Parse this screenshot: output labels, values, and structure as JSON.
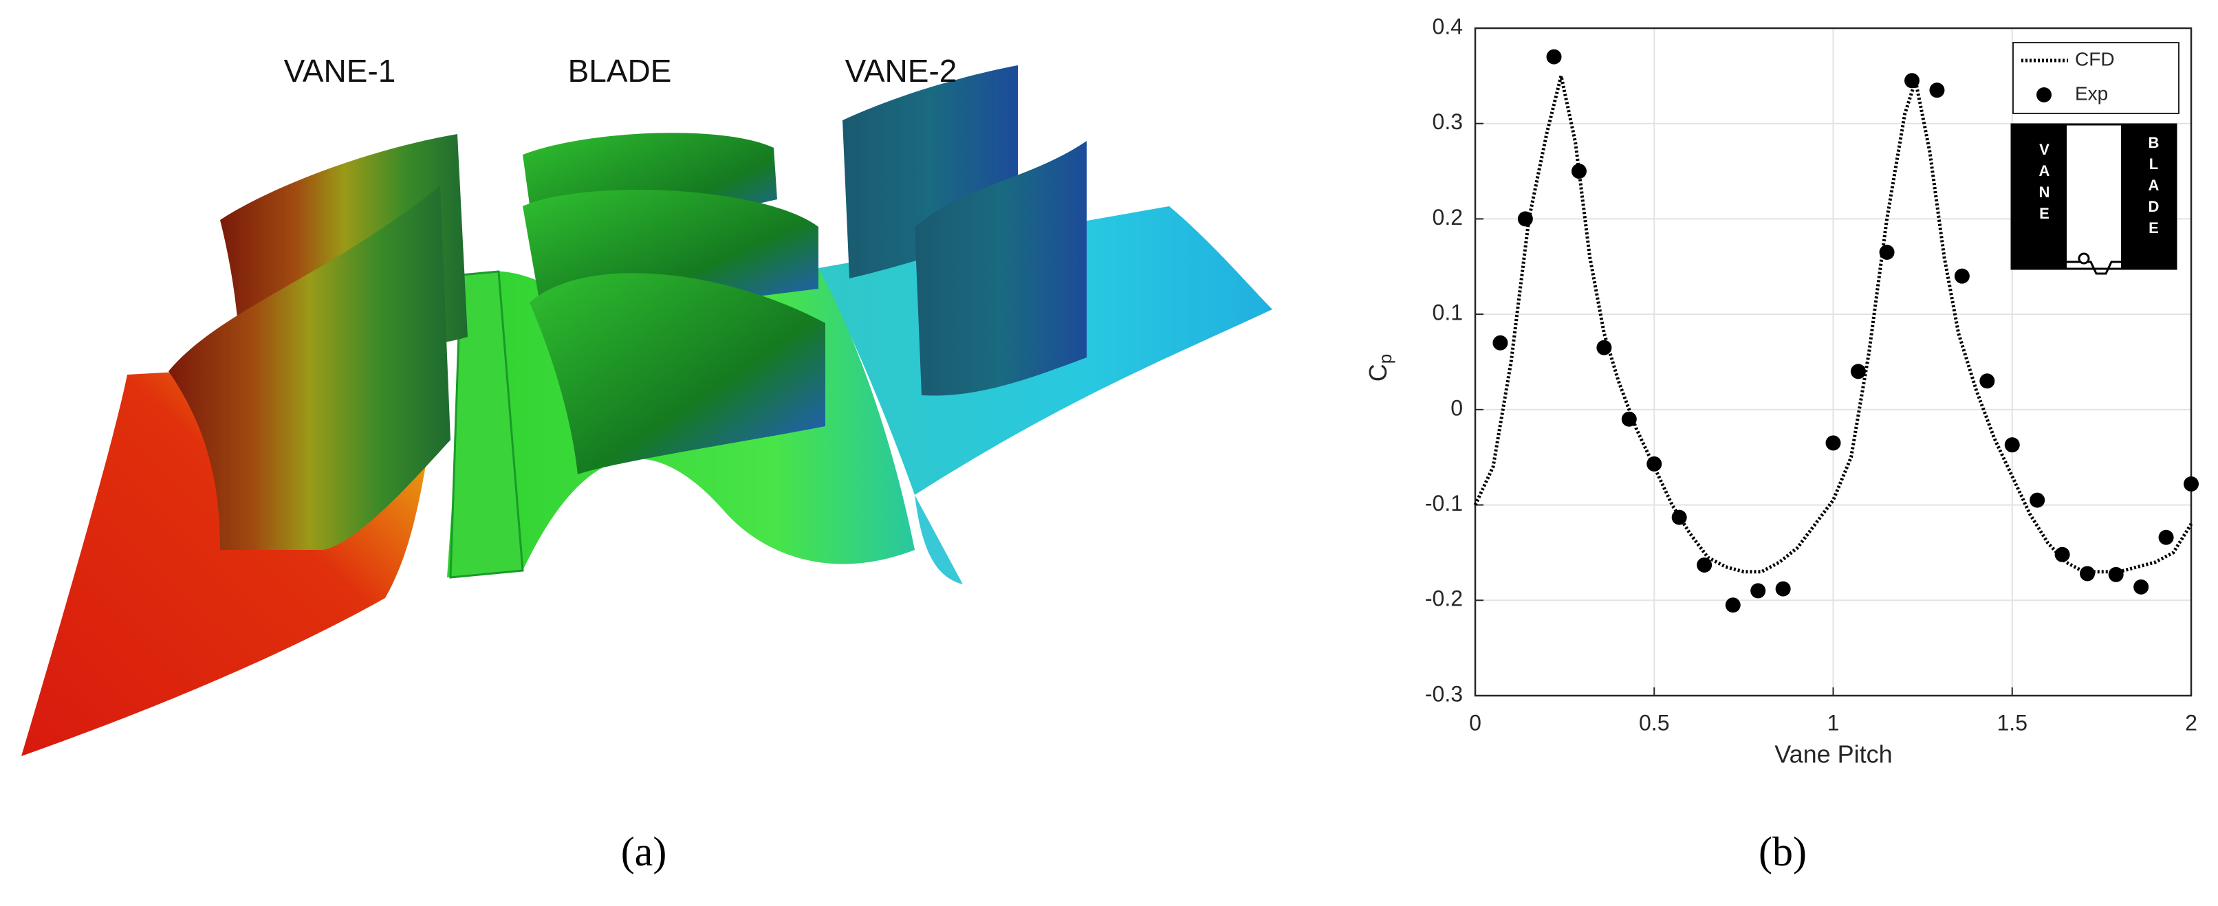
{
  "panel_a": {
    "labels": [
      "VANE-1",
      "BLADE",
      "VANE-2"
    ],
    "caption": "(a)"
  },
  "panel_b": {
    "caption": "(b)",
    "inset": {
      "left": "VANE",
      "right": "BLADE"
    }
  },
  "chart_data": {
    "type": "line",
    "xlabel": "Vane Pitch",
    "ylabel": {
      "base": "C",
      "sub": "p"
    },
    "xlim": [
      0,
      2
    ],
    "xticks": [
      0,
      0.5,
      1,
      1.5,
      2
    ],
    "ylim": [
      -0.3,
      0.4
    ],
    "yticks": [
      -0.3,
      -0.2,
      -0.1,
      0,
      0.1,
      0.2,
      0.3,
      0.4
    ],
    "grid": true,
    "legend": "upper right",
    "series": [
      {
        "name": "CFD",
        "color": "#000000",
        "style": "dotted",
        "x": [
          0,
          0.05,
          0.1,
          0.15,
          0.2,
          0.24,
          0.28,
          0.32,
          0.36,
          0.4,
          0.45,
          0.5,
          0.55,
          0.6,
          0.65,
          0.7,
          0.75,
          0.8,
          0.85,
          0.9,
          0.95,
          1.0,
          1.05,
          1.1,
          1.15,
          1.2,
          1.23,
          1.27,
          1.31,
          1.35,
          1.4,
          1.45,
          1.5,
          1.55,
          1.6,
          1.65,
          1.7,
          1.75,
          1.8,
          1.85,
          1.9,
          1.95,
          2.0
        ],
        "values": [
          -0.1,
          -0.06,
          0.05,
          0.2,
          0.29,
          0.35,
          0.28,
          0.16,
          0.08,
          0.03,
          -0.02,
          -0.06,
          -0.1,
          -0.13,
          -0.155,
          -0.165,
          -0.17,
          -0.17,
          -0.16,
          -0.145,
          -0.12,
          -0.095,
          -0.05,
          0.06,
          0.2,
          0.31,
          0.345,
          0.27,
          0.16,
          0.08,
          0.02,
          -0.03,
          -0.07,
          -0.11,
          -0.14,
          -0.16,
          -0.17,
          -0.17,
          -0.17,
          -0.165,
          -0.16,
          -0.15,
          -0.12
        ]
      },
      {
        "name": "Exp",
        "color": "#000000",
        "marker": "circle",
        "x": [
          0.07,
          0.14,
          0.22,
          0.29,
          0.36,
          0.43,
          0.5,
          0.57,
          0.64,
          0.72,
          0.79,
          0.86,
          1.0,
          1.07,
          1.15,
          1.22,
          1.29,
          1.36,
          1.43,
          1.5,
          1.57,
          1.64,
          1.71,
          1.79,
          1.86,
          1.93,
          2.0
        ],
        "values": [
          0.07,
          0.2,
          0.37,
          0.25,
          0.065,
          -0.01,
          -0.057,
          -0.113,
          -0.163,
          -0.205,
          -0.19,
          -0.188,
          -0.035,
          0.04,
          0.165,
          0.345,
          0.335,
          0.14,
          0.03,
          -0.037,
          -0.095,
          -0.152,
          -0.172,
          -0.173,
          -0.186,
          -0.134,
          -0.078
        ]
      }
    ]
  }
}
